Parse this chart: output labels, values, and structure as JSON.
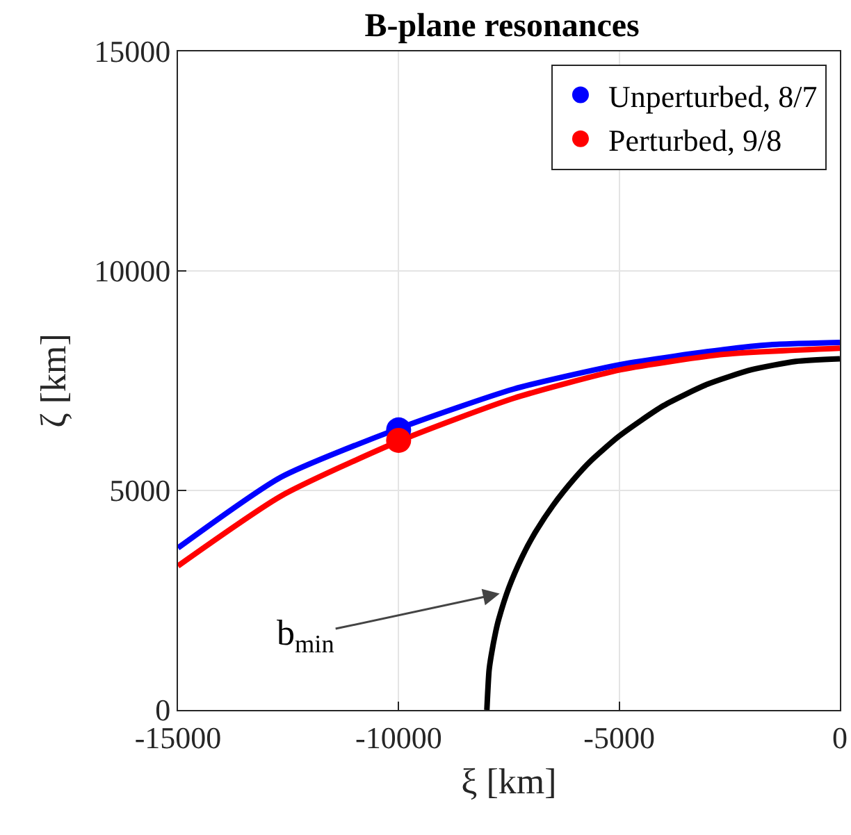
{
  "chart_data": {
    "type": "line",
    "title": "B-plane resonances",
    "xlabel": "ξ [km]",
    "ylabel": "ζ [km]",
    "xlim": [
      -15000,
      0
    ],
    "xticks": [
      -15000,
      -10000,
      -5000,
      0
    ],
    "ylim": [
      0,
      15000
    ],
    "yticks": [
      0,
      5000,
      10000,
      15000
    ],
    "grid": true,
    "legend": "top right",
    "marker": "none",
    "line_style": "solid",
    "series": [
      {
        "color": "#0000ff",
        "x": [
          -15000,
          -12670,
          -10000,
          -7390,
          -4960,
          -2630,
          -1570,
          0
        ],
        "values": [
          3690,
          5300,
          6410,
          7310,
          7870,
          8210,
          8320,
          8370
        ]
      },
      {
        "color": "#ff0000",
        "x": [
          -15000,
          -12670,
          -10000,
          -7390,
          -4960,
          -2630,
          0
        ],
        "values": [
          3280,
          4870,
          6120,
          7100,
          7750,
          8100,
          8240
        ]
      },
      {
        "color": "#000000",
        "x": [
          -8000,
          -7950,
          -7900,
          -7800,
          -7730,
          -7500,
          -7200,
          -6930,
          -6500,
          -6000,
          -5660,
          -5000,
          -4000,
          -3000,
          -2000,
          -1000,
          0
        ],
        "values": [
          0,
          900,
          1250,
          1780,
          2070,
          2790,
          3490,
          4000,
          4660,
          5290,
          5660,
          6240,
          6930,
          7420,
          7750,
          7940,
          8000
        ]
      },
      {
        "type": "scatter",
        "marker": "circle",
        "name": "Unperturbed, 8/7",
        "color": "#0000ff",
        "x": [
          -10000
        ],
        "values": [
          6380
        ]
      },
      {
        "type": "scatter",
        "marker": "circle",
        "name": "Perturbed, 9/8",
        "color": "#ff0000",
        "x": [
          -10000
        ],
        "values": [
          6140
        ]
      }
    ],
    "annotations": [
      {
        "text": "b$_{min}$",
        "x": -7710,
        "y": 2650
      }
    ]
  }
}
